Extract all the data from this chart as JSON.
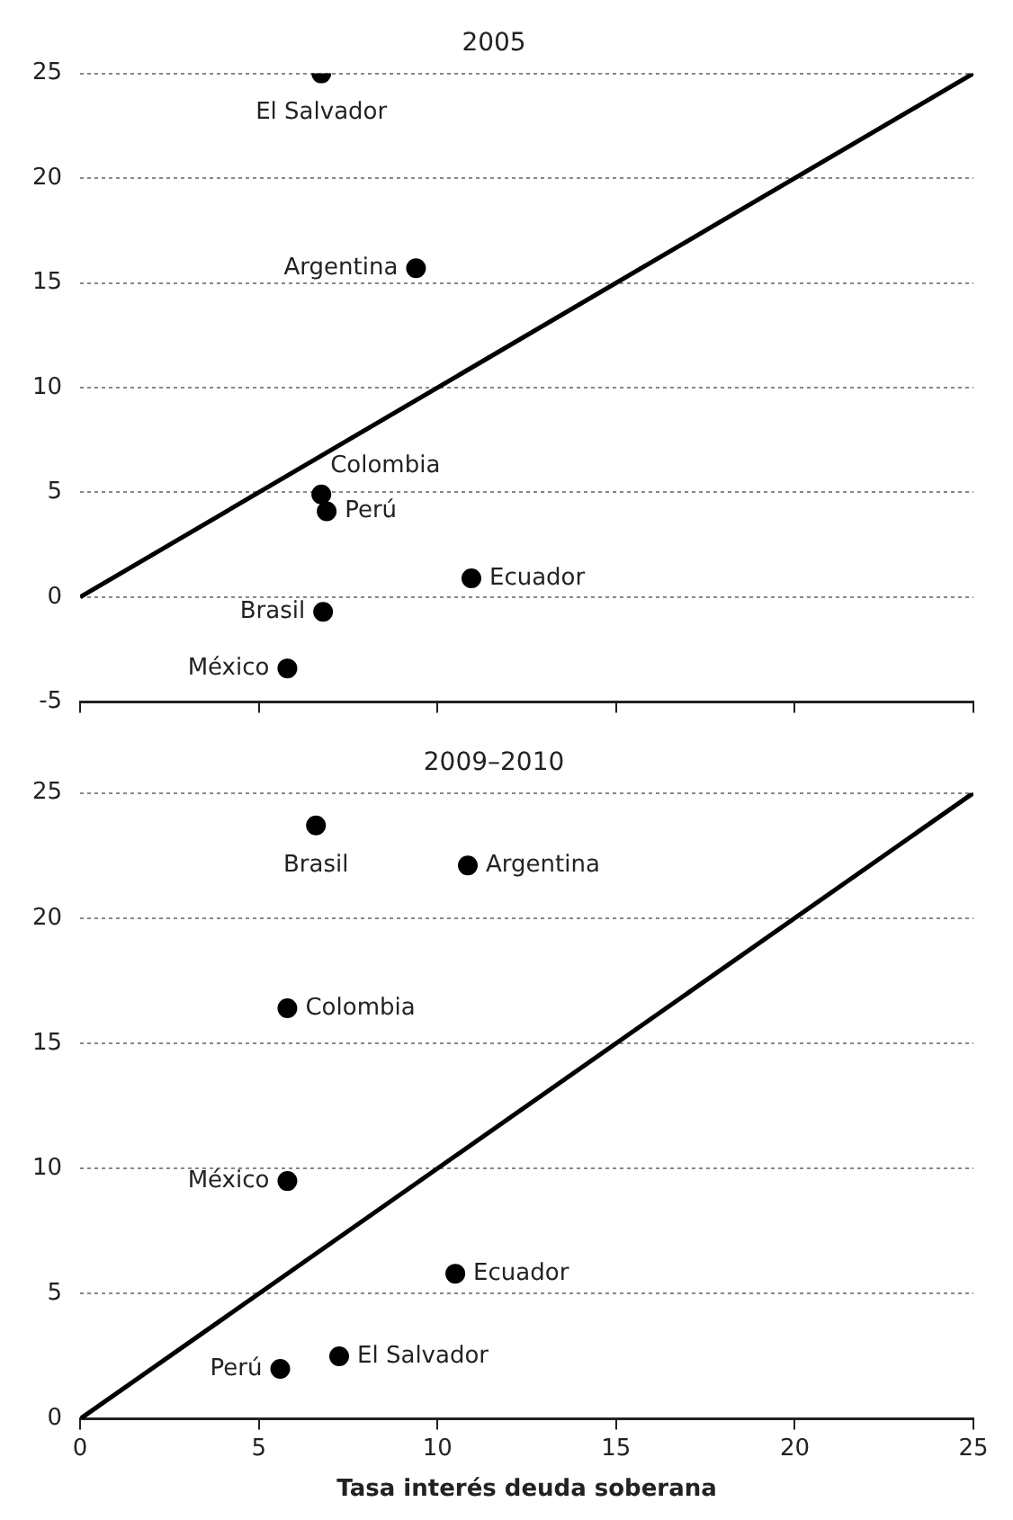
{
  "chart_data": [
    {
      "type": "scatter",
      "title": "2005",
      "marker": "circle",
      "grid": "y",
      "tick_labels": "y",
      "xlim": [
        0,
        25
      ],
      "xticks": [
        0,
        5,
        10,
        15,
        20,
        25
      ],
      "ylim": [
        -5,
        25
      ],
      "yticks": [
        -5,
        0,
        5,
        10,
        15,
        20,
        25
      ],
      "series": [
        {
          "type": "line",
          "color": "#000000",
          "marker": "none",
          "x": [
            0,
            25
          ],
          "values": [
            0,
            25
          ]
        },
        {
          "name": "El Salvador",
          "color": "#000000",
          "x": [
            6.75
          ],
          "values": [
            25
          ]
        },
        {
          "name": "Argentina",
          "color": "#000000",
          "x": [
            9.4
          ],
          "values": [
            15.7
          ]
        },
        {
          "name": "Colombia",
          "color": "#000000",
          "x": [
            6.75
          ],
          "values": [
            4.9
          ]
        },
        {
          "name": "Perú",
          "color": "#000000",
          "x": [
            6.9
          ],
          "values": [
            4.1
          ]
        },
        {
          "name": "Ecuador",
          "color": "#000000",
          "x": [
            10.95
          ],
          "values": [
            0.9
          ]
        },
        {
          "name": "Brasil",
          "color": "#000000",
          "x": [
            6.8
          ],
          "values": [
            -0.7
          ]
        },
        {
          "name": "México",
          "color": "#000000",
          "x": [
            5.8
          ],
          "values": [
            -3.4
          ]
        }
      ]
    },
    {
      "type": "scatter",
      "title": "2009–2010",
      "xlabel": "Tasa interés deuda soberana",
      "marker": "circle",
      "grid": "y",
      "xlim": [
        0,
        25
      ],
      "xticks": [
        0,
        5,
        10,
        15,
        20,
        25
      ],
      "ylim": [
        0,
        25
      ],
      "yticks": [
        0,
        5,
        10,
        15,
        20,
        25
      ],
      "series": [
        {
          "type": "line",
          "color": "#000000",
          "marker": "none",
          "x": [
            0,
            25
          ],
          "values": [
            0,
            25
          ]
        },
        {
          "name": "Brasil",
          "color": "#000000",
          "x": [
            6.6
          ],
          "values": [
            23.7
          ]
        },
        {
          "name": "Argentina",
          "color": "#000000",
          "x": [
            10.85
          ],
          "values": [
            22.1
          ]
        },
        {
          "name": "Colombia",
          "color": "#000000",
          "x": [
            5.8
          ],
          "values": [
            16.4
          ]
        },
        {
          "name": "México",
          "color": "#000000",
          "x": [
            5.8
          ],
          "values": [
            9.5
          ]
        },
        {
          "name": "Ecuador",
          "color": "#000000",
          "x": [
            10.5
          ],
          "values": [
            5.8
          ]
        },
        {
          "name": "El Salvador",
          "color": "#000000",
          "x": [
            7.25
          ],
          "values": [
            2.5
          ]
        },
        {
          "name": "Perú",
          "color": "#000000",
          "x": [
            5.6
          ],
          "values": [
            2.0
          ]
        }
      ]
    }
  ]
}
